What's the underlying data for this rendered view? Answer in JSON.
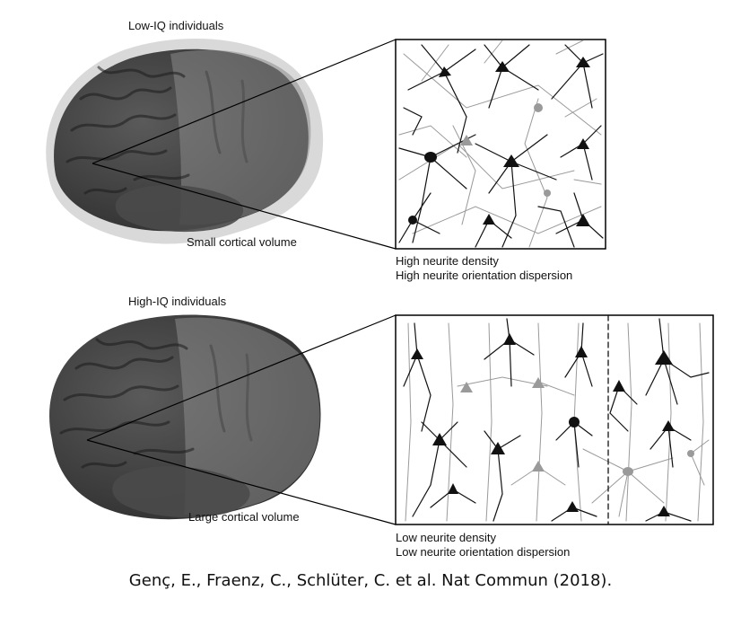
{
  "top_panel": {
    "group_label": "Low-IQ individuals",
    "volume_label": "Small cortical volume",
    "caption_line1": "High neurite density",
    "caption_line2": "High neurite orientation dispersion"
  },
  "bottom_panel": {
    "group_label": "High-IQ individuals",
    "volume_label": "Large cortical volume",
    "caption_line1": "Low neurite density",
    "caption_line2": "Low neurite orientation dispersion"
  },
  "citation": "Genç, E., Fraenz, C., Schlüter, C. et al.  Nat Commun (2018).",
  "colors": {
    "brain_dark": "#3a3a3a",
    "brain_halo": "#c9c9c9",
    "neuron_black": "#111111",
    "neuron_gray": "#9a9a9a"
  }
}
